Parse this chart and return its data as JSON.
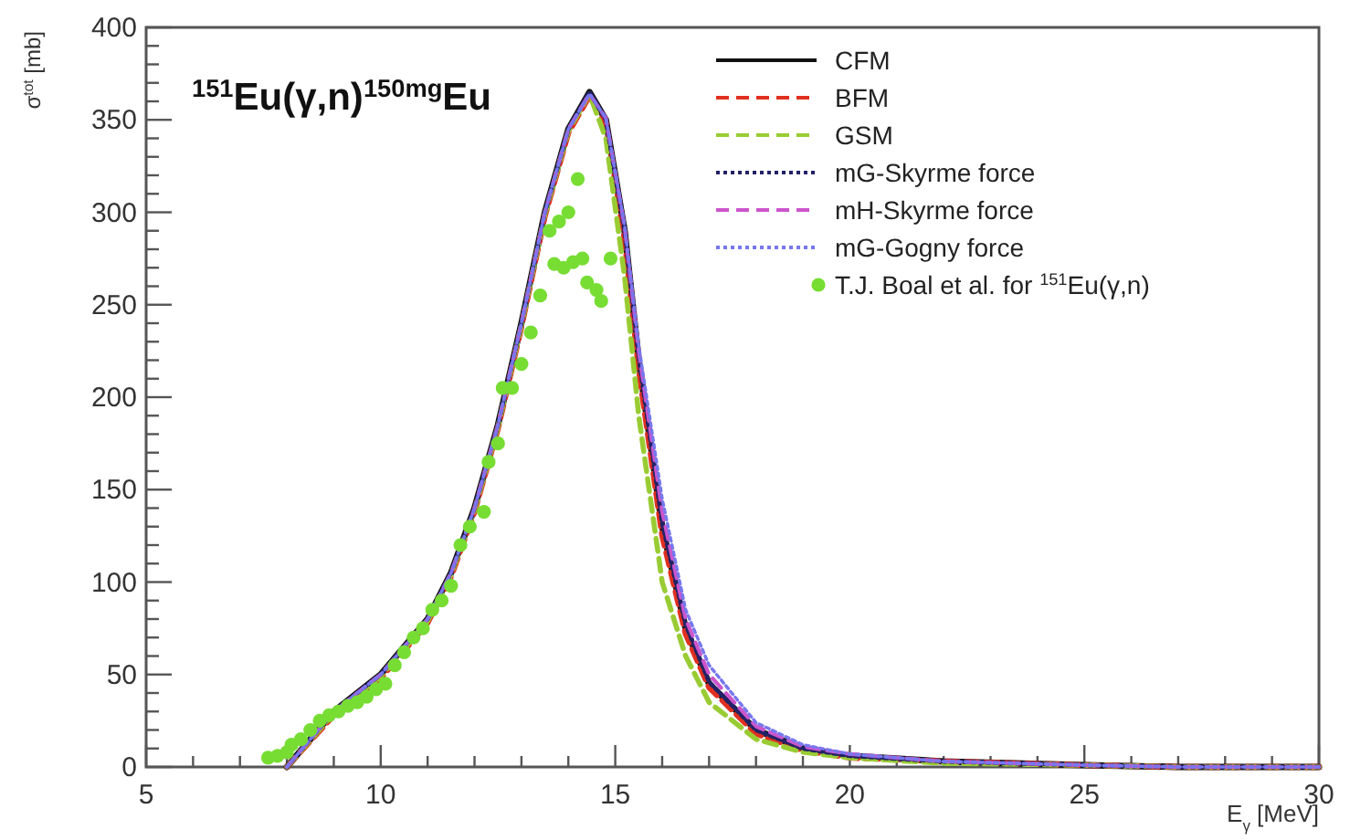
{
  "chart_data": {
    "type": "line",
    "title": "$^{151}$Eu(γ,n)$^{150mg}$Eu",
    "xlabel": "E$_{γ}$ [MeV]",
    "ylabel": "σ$^{tot}$ [mb]",
    "xlim": [
      5,
      30
    ],
    "ylim": [
      0,
      400
    ],
    "xticks": [
      5,
      {
        "value": 6,
        "label": null
      },
      {
        "value": 7,
        "label": null
      },
      {
        "value": 8,
        "label": null
      },
      {
        "value": 9,
        "label": null
      },
      10,
      {
        "value": 11,
        "label": null
      },
      {
        "value": 12,
        "label": null
      },
      {
        "value": 13,
        "label": null
      },
      {
        "value": 14,
        "label": null
      },
      15,
      {
        "value": 16,
        "label": null
      },
      {
        "value": 17,
        "label": null
      },
      {
        "value": 18,
        "label": null
      },
      {
        "value": 19,
        "label": null
      },
      20,
      {
        "value": 21,
        "label": null
      },
      {
        "value": 22,
        "label": null
      },
      {
        "value": 23,
        "label": null
      },
      {
        "value": 24,
        "label": null
      },
      25,
      {
        "value": 26,
        "label": null
      },
      {
        "value": 27,
        "label": null
      },
      {
        "value": 28,
        "label": null
      },
      {
        "value": 29,
        "label": null
      },
      30
    ],
    "yticks": [
      0,
      {
        "value": 10,
        "label": null
      },
      {
        "value": 20,
        "label": null
      },
      {
        "value": 30,
        "label": null
      },
      {
        "value": 40,
        "label": null
      },
      50,
      {
        "value": 60,
        "label": null
      },
      {
        "value": 70,
        "label": null
      },
      {
        "value": 80,
        "label": null
      },
      {
        "value": 90,
        "label": null
      },
      100,
      {
        "value": 110,
        "label": null
      },
      {
        "value": 120,
        "label": null
      },
      {
        "value": 130,
        "label": null
      },
      {
        "value": 140,
        "label": null
      },
      150,
      {
        "value": 160,
        "label": null
      },
      {
        "value": 170,
        "label": null
      },
      {
        "value": 180,
        "label": null
      },
      {
        "value": 190,
        "label": null
      },
      200,
      {
        "value": 210,
        "label": null
      },
      {
        "value": 220,
        "label": null
      },
      {
        "value": 230,
        "label": null
      },
      {
        "value": 240,
        "label": null
      },
      250,
      {
        "value": 260,
        "label": null
      },
      {
        "value": 270,
        "label": null
      },
      {
        "value": 280,
        "label": null
      },
      {
        "value": 290,
        "label": null
      },
      300,
      {
        "value": 310,
        "label": null
      },
      {
        "value": 320,
        "label": null
      },
      {
        "value": 330,
        "label": null
      },
      {
        "value": 340,
        "label": null
      },
      350,
      {
        "value": 360,
        "label": null
      },
      {
        "value": 370,
        "label": null
      },
      {
        "value": 380,
        "label": null
      },
      {
        "value": 390,
        "label": null
      },
      400
    ],
    "grid": false,
    "legend": "top right",
    "marker": "none",
    "x": [
      8,
      9,
      10,
      11,
      11.5,
      12,
      12.5,
      13,
      13.5,
      14,
      14.45,
      14.8,
      15.2,
      15.5,
      16,
      16.5,
      17,
      18,
      19,
      20,
      22,
      25,
      27,
      30
    ],
    "series": [
      {
        "name": "CFM",
        "color": "#111111",
        "line_style": "solid",
        "values": [
          0,
          30,
          50,
          80,
          105,
          140,
          185,
          240,
          300,
          345,
          365,
          350,
          290,
          220,
          130,
          75,
          45,
          20,
          10,
          6,
          3,
          1,
          0,
          0
        ]
      },
      {
        "name": "BFM",
        "color": "#e03020",
        "line_style": "dashed",
        "values": [
          0,
          28,
          48,
          78,
          103,
          138,
          183,
          238,
          298,
          343,
          363,
          348,
          285,
          215,
          125,
          72,
          43,
          18,
          9,
          5,
          3,
          1,
          0,
          0
        ]
      },
      {
        "name": "GSM",
        "color": "#99cc33",
        "line_style": "dashed",
        "values": [
          0,
          29,
          49,
          79,
          104,
          139,
          184,
          239,
          299,
          344,
          364,
          340,
          265,
          190,
          100,
          60,
          35,
          15,
          8,
          5,
          2,
          1,
          0,
          0
        ]
      },
      {
        "name": "mG-Skyrme force",
        "color": "#222266",
        "line_style": "dotted",
        "values": [
          0,
          30,
          50,
          80,
          105,
          140,
          185,
          240,
          300,
          345,
          365,
          350,
          290,
          222,
          132,
          77,
          46,
          20,
          10,
          6,
          3,
          1,
          0,
          0
        ]
      },
      {
        "name": "mH-Skyrme force",
        "color": "#cc55cc",
        "line_style": "dashed",
        "values": [
          0,
          30,
          50,
          80,
          105,
          140,
          185,
          240,
          300,
          345,
          364,
          351,
          292,
          225,
          138,
          80,
          50,
          22,
          11,
          7,
          3,
          1,
          0,
          0
        ]
      },
      {
        "name": "mG-Gogny force",
        "color": "#7777ee",
        "line_style": "dotted",
        "values": [
          0,
          30,
          50,
          80,
          105,
          140,
          185,
          240,
          300,
          345,
          364,
          351,
          293,
          228,
          145,
          85,
          55,
          24,
          12,
          7,
          3,
          1,
          0,
          0
        ]
      },
      {
        "name": "T.J. Boal et al. for $^{151}$Eu(γ,n)",
        "type": "scatter",
        "marker": "circle",
        "color": "#77dd33",
        "x": [
          7.6,
          7.8,
          8,
          8.1,
          8.3,
          8.5,
          8.7,
          8.9,
          9.1,
          9.3,
          9.5,
          9.7,
          9.9,
          10.1,
          10.3,
          10.5,
          10.7,
          10.9,
          11.1,
          11.3,
          11.5,
          11.7,
          11.9,
          12.2,
          12.3,
          12.5,
          12.6,
          12.8,
          13,
          13.2,
          13.4,
          13.6,
          13.8,
          14,
          14.2,
          13.7,
          13.9,
          14.1,
          14.3,
          14.4,
          14.6,
          14.7,
          14.9
        ],
        "values": [
          5,
          6,
          8,
          12,
          15,
          20,
          25,
          28,
          30,
          33,
          35,
          38,
          42,
          45,
          55,
          62,
          70,
          75,
          85,
          90,
          98,
          120,
          130,
          138,
          165,
          175,
          205,
          205,
          218,
          235,
          255,
          290,
          295,
          300,
          318,
          272,
          270,
          273,
          275,
          262,
          258,
          252,
          275
        ]
      }
    ]
  }
}
